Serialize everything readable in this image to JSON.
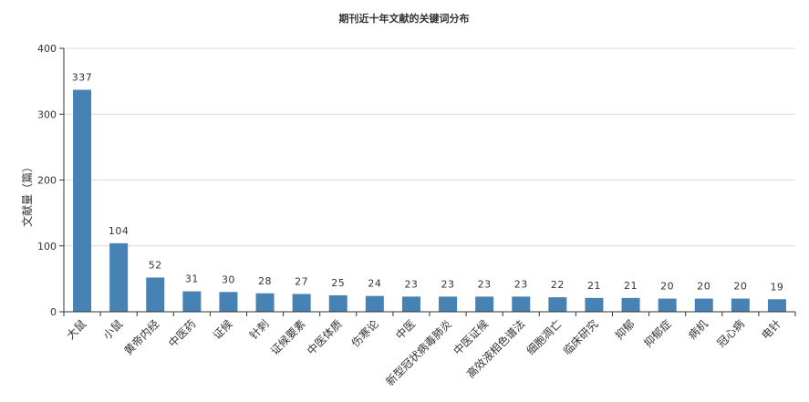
{
  "chart_data": {
    "type": "bar",
    "title": "期刊近十年文献的关键词分布",
    "ylabel": "文献量（篇）",
    "xlabel": "",
    "ylim": [
      0,
      400
    ],
    "yticks": [
      0,
      100,
      200,
      300,
      400
    ],
    "grid": true,
    "legend": "none",
    "bar_color": "#4682B4",
    "categories": [
      "大鼠",
      "小鼠",
      "黄帝内经",
      "中医药",
      "证候",
      "针刺",
      "证候要素",
      "中医体质",
      "伤寒论",
      "中医",
      "新型冠状病毒肺炎",
      "中医证候",
      "高效液相色谱法",
      "细胞凋亡",
      "临床研究",
      "抑郁",
      "抑郁症",
      "病机",
      "冠心病",
      "电针"
    ],
    "values": [
      337,
      104,
      52,
      31,
      30,
      28,
      27,
      25,
      24,
      23,
      23,
      23,
      23,
      22,
      21,
      21,
      20,
      20,
      20,
      19
    ]
  }
}
